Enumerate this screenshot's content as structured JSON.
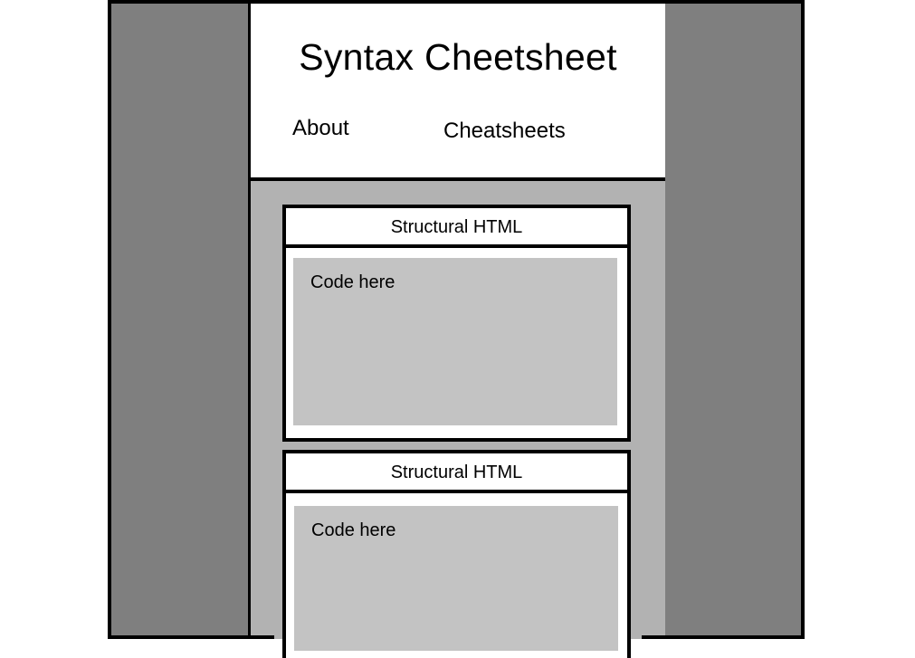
{
  "header": {
    "title": "Syntax Cheetsheet",
    "nav": {
      "about": "About",
      "cheatsheets": "Cheatsheets"
    }
  },
  "cards": [
    {
      "title": "Structural HTML",
      "code": "Code here"
    },
    {
      "title": "Structural HTML",
      "code": "Code here"
    }
  ],
  "colors": {
    "sidebar": "#7f7f7f",
    "content_bg": "#b2b2b2",
    "code_bg": "#c3c3c3",
    "border": "#000000"
  }
}
